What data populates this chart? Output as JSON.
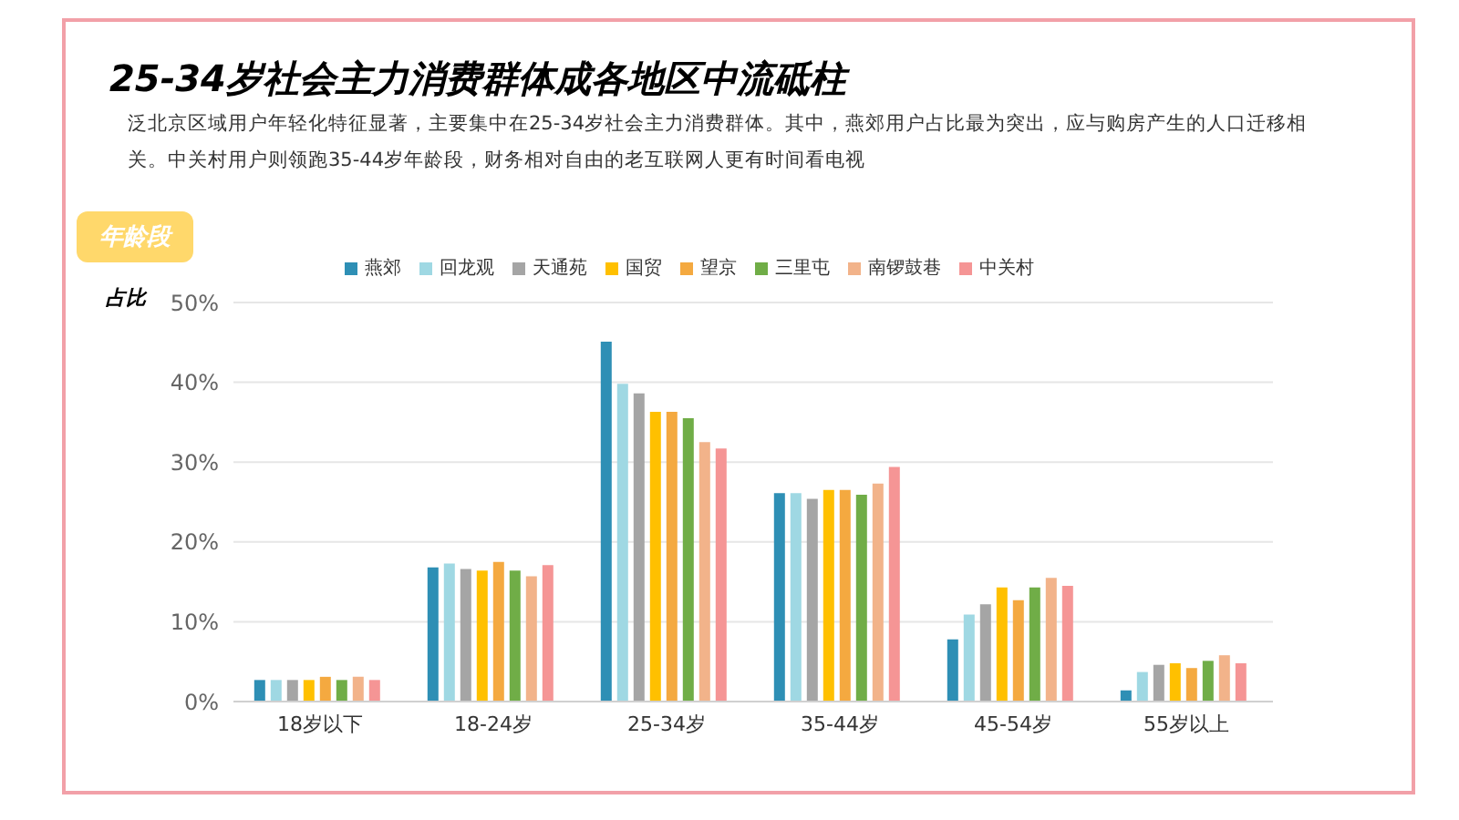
{
  "chart_data": {
    "type": "bar",
    "title": "25-34岁社会主力消费群体成各地区中流砥柱",
    "subtitle": "泛北京区域用户年轻化特征显著，主要集中在25-34岁社会主力消费群体。其中，燕郊用户占比最为突出，应与购房产生的人口迁移相关。中关村用户则领跑35-44岁年龄段，财务相对自由的老互联网人更有时间看电视",
    "xlabel": "年龄段",
    "ylabel": "占比",
    "categories": [
      "18岁以下",
      "18-24岁",
      "25-34岁",
      "35-44岁",
      "45-54岁",
      "55岁以上"
    ],
    "series": [
      {
        "name": "燕郊",
        "color": "#2e8fb5",
        "values": [
          2.7,
          16.8,
          45.1,
          26.1,
          7.8,
          1.4
        ]
      },
      {
        "name": "回龙观",
        "color": "#9fd8e3",
        "values": [
          2.7,
          17.3,
          39.8,
          26.1,
          10.9,
          3.7
        ]
      },
      {
        "name": "天通苑",
        "color": "#a5a5a5",
        "values": [
          2.7,
          16.6,
          38.6,
          25.4,
          12.2,
          4.6
        ]
      },
      {
        "name": "国贸",
        "color": "#ffc000",
        "values": [
          2.7,
          16.4,
          36.3,
          26.5,
          14.3,
          4.8
        ]
      },
      {
        "name": "望京",
        "color": "#f4a940",
        "values": [
          3.1,
          17.5,
          36.3,
          26.5,
          12.7,
          4.2
        ]
      },
      {
        "name": "三里屯",
        "color": "#70ad47",
        "values": [
          2.7,
          16.4,
          35.5,
          25.9,
          14.3,
          5.1
        ]
      },
      {
        "name": "南锣鼓巷",
        "color": "#f2b38a",
        "values": [
          3.1,
          15.7,
          32.5,
          27.3,
          15.5,
          5.8
        ]
      },
      {
        "name": "中关村",
        "color": "#f59595",
        "values": [
          2.7,
          17.1,
          31.7,
          29.4,
          14.5,
          4.8
        ]
      }
    ],
    "ylim": [
      0,
      50
    ],
    "yticks": [
      {
        "value": 0,
        "label": "0%"
      },
      {
        "value": 10,
        "label": "10%"
      },
      {
        "value": 20,
        "label": "20%"
      },
      {
        "value": 30,
        "label": "30%"
      },
      {
        "value": 40,
        "label": "40%"
      },
      {
        "value": 50,
        "label": "50%"
      }
    ],
    "grid": "y",
    "legend": "top"
  }
}
